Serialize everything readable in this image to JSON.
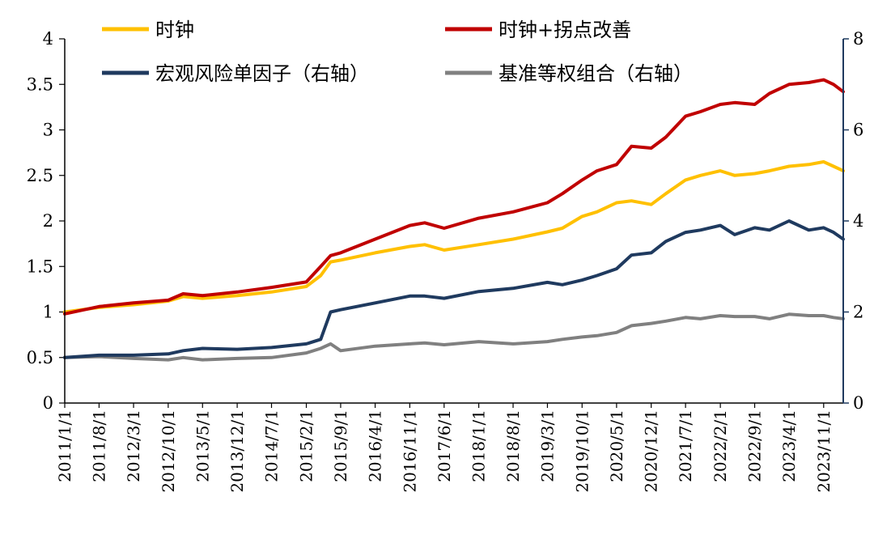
{
  "chart_data": {
    "type": "line",
    "title": "",
    "xlabel": "",
    "ylabel": "",
    "y_left": {
      "ticks": [
        "0",
        "0.5",
        "1",
        "1.5",
        "2",
        "2.5",
        "3",
        "3.5",
        "4"
      ],
      "range": [
        0,
        4
      ]
    },
    "y_right": {
      "ticks": [
        "0",
        "2",
        "4",
        "6",
        "8"
      ],
      "range": [
        0,
        8
      ],
      "color": "#1f3a5f"
    },
    "x_ticks": [
      "2011/1/1",
      "2011/8/1",
      "2012/3/1",
      "2012/10/1",
      "2013/5/1",
      "2013/12/1",
      "2014/7/1",
      "2015/2/1",
      "2015/9/1",
      "2016/4/1",
      "2016/11/1",
      "2017/6/1",
      "2018/1/1",
      "2018/8/1",
      "2019/3/1",
      "2019/10/1",
      "2020/5/1",
      "2020/12/1",
      "2021/7/1",
      "2022/2/1",
      "2022/9/1",
      "2023/4/1",
      "2023/11/1"
    ],
    "legend_position": "top",
    "series": [
      {
        "name": "时钟",
        "axis": "left",
        "color": "#ffc000",
        "points": [
          [
            "2011/1/1",
            1.0
          ],
          [
            "2011/8/1",
            1.05
          ],
          [
            "2012/3/1",
            1.08
          ],
          [
            "2012/10/1",
            1.12
          ],
          [
            "2013/1/1",
            1.17
          ],
          [
            "2013/5/1",
            1.15
          ],
          [
            "2013/12/1",
            1.18
          ],
          [
            "2014/7/1",
            1.22
          ],
          [
            "2015/2/1",
            1.28
          ],
          [
            "2015/5/1",
            1.4
          ],
          [
            "2015/7/1",
            1.55
          ],
          [
            "2015/9/1",
            1.57
          ],
          [
            "2016/4/1",
            1.65
          ],
          [
            "2016/11/1",
            1.72
          ],
          [
            "2017/2/1",
            1.74
          ],
          [
            "2017/6/1",
            1.68
          ],
          [
            "2018/1/1",
            1.74
          ],
          [
            "2018/8/1",
            1.8
          ],
          [
            "2019/3/1",
            1.88
          ],
          [
            "2019/6/1",
            1.92
          ],
          [
            "2019/10/1",
            2.05
          ],
          [
            "2020/1/1",
            2.1
          ],
          [
            "2020/5/1",
            2.2
          ],
          [
            "2020/8/1",
            2.22
          ],
          [
            "2020/12/1",
            2.18
          ],
          [
            "2021/3/1",
            2.3
          ],
          [
            "2021/7/1",
            2.45
          ],
          [
            "2021/10/1",
            2.5
          ],
          [
            "2022/2/1",
            2.55
          ],
          [
            "2022/5/1",
            2.5
          ],
          [
            "2022/9/1",
            2.52
          ],
          [
            "2022/12/1",
            2.55
          ],
          [
            "2023/4/1",
            2.6
          ],
          [
            "2023/8/1",
            2.62
          ],
          [
            "2023/11/1",
            2.65
          ],
          [
            "2024/1/1",
            2.6
          ],
          [
            "2024/3/1",
            2.55
          ]
        ]
      },
      {
        "name": "时钟+拐点改善",
        "axis": "left",
        "color": "#c00000",
        "points": [
          [
            "2011/1/1",
            0.98
          ],
          [
            "2011/8/1",
            1.06
          ],
          [
            "2012/3/1",
            1.1
          ],
          [
            "2012/10/1",
            1.13
          ],
          [
            "2013/1/1",
            1.2
          ],
          [
            "2013/5/1",
            1.18
          ],
          [
            "2013/12/1",
            1.22
          ],
          [
            "2014/7/1",
            1.27
          ],
          [
            "2015/2/1",
            1.33
          ],
          [
            "2015/5/1",
            1.5
          ],
          [
            "2015/7/1",
            1.62
          ],
          [
            "2015/9/1",
            1.65
          ],
          [
            "2016/4/1",
            1.8
          ],
          [
            "2016/11/1",
            1.95
          ],
          [
            "2017/2/1",
            1.98
          ],
          [
            "2017/6/1",
            1.92
          ],
          [
            "2018/1/1",
            2.03
          ],
          [
            "2018/8/1",
            2.1
          ],
          [
            "2019/3/1",
            2.2
          ],
          [
            "2019/6/1",
            2.3
          ],
          [
            "2019/10/1",
            2.45
          ],
          [
            "2020/1/1",
            2.55
          ],
          [
            "2020/5/1",
            2.62
          ],
          [
            "2020/8/1",
            2.82
          ],
          [
            "2020/12/1",
            2.8
          ],
          [
            "2021/3/1",
            2.92
          ],
          [
            "2021/7/1",
            3.15
          ],
          [
            "2021/10/1",
            3.2
          ],
          [
            "2022/2/1",
            3.28
          ],
          [
            "2022/5/1",
            3.3
          ],
          [
            "2022/9/1",
            3.28
          ],
          [
            "2022/12/1",
            3.4
          ],
          [
            "2023/4/1",
            3.5
          ],
          [
            "2023/8/1",
            3.52
          ],
          [
            "2023/11/1",
            3.55
          ],
          [
            "2024/1/1",
            3.5
          ],
          [
            "2024/3/1",
            3.42
          ]
        ]
      },
      {
        "name": "宏观风险单因子（右轴）",
        "axis": "right",
        "color": "#1f3a5f",
        "points": [
          [
            "2011/1/1",
            1.0
          ],
          [
            "2011/8/1",
            1.05
          ],
          [
            "2012/3/1",
            1.05
          ],
          [
            "2012/10/1",
            1.08
          ],
          [
            "2013/1/1",
            1.15
          ],
          [
            "2013/5/1",
            1.2
          ],
          [
            "2013/12/1",
            1.18
          ],
          [
            "2014/7/1",
            1.22
          ],
          [
            "2015/2/1",
            1.3
          ],
          [
            "2015/5/1",
            1.4
          ],
          [
            "2015/7/1",
            2.0
          ],
          [
            "2015/9/1",
            2.05
          ],
          [
            "2016/4/1",
            2.2
          ],
          [
            "2016/11/1",
            2.35
          ],
          [
            "2017/2/1",
            2.35
          ],
          [
            "2017/6/1",
            2.3
          ],
          [
            "2018/1/1",
            2.45
          ],
          [
            "2018/8/1",
            2.52
          ],
          [
            "2019/3/1",
            2.65
          ],
          [
            "2019/6/1",
            2.6
          ],
          [
            "2019/10/1",
            2.7
          ],
          [
            "2020/1/1",
            2.8
          ],
          [
            "2020/5/1",
            2.95
          ],
          [
            "2020/8/1",
            3.25
          ],
          [
            "2020/12/1",
            3.3
          ],
          [
            "2021/3/1",
            3.55
          ],
          [
            "2021/7/1",
            3.75
          ],
          [
            "2021/10/1",
            3.8
          ],
          [
            "2022/2/1",
            3.9
          ],
          [
            "2022/5/1",
            3.7
          ],
          [
            "2022/9/1",
            3.85
          ],
          [
            "2022/12/1",
            3.8
          ],
          [
            "2023/4/1",
            4.0
          ],
          [
            "2023/8/1",
            3.8
          ],
          [
            "2023/11/1",
            3.85
          ],
          [
            "2024/1/1",
            3.75
          ],
          [
            "2024/3/1",
            3.6
          ]
        ]
      },
      {
        "name": "基准等权组合（右轴）",
        "axis": "right",
        "color": "#808080",
        "points": [
          [
            "2011/1/1",
            1.0
          ],
          [
            "2011/8/1",
            1.02
          ],
          [
            "2012/3/1",
            0.98
          ],
          [
            "2012/10/1",
            0.95
          ],
          [
            "2013/1/1",
            1.0
          ],
          [
            "2013/5/1",
            0.95
          ],
          [
            "2013/12/1",
            0.98
          ],
          [
            "2014/7/1",
            1.0
          ],
          [
            "2015/2/1",
            1.1
          ],
          [
            "2015/5/1",
            1.2
          ],
          [
            "2015/7/1",
            1.3
          ],
          [
            "2015/9/1",
            1.15
          ],
          [
            "2016/4/1",
            1.25
          ],
          [
            "2016/11/1",
            1.3
          ],
          [
            "2017/2/1",
            1.32
          ],
          [
            "2017/6/1",
            1.28
          ],
          [
            "2018/1/1",
            1.35
          ],
          [
            "2018/8/1",
            1.3
          ],
          [
            "2019/3/1",
            1.35
          ],
          [
            "2019/6/1",
            1.4
          ],
          [
            "2019/10/1",
            1.45
          ],
          [
            "2020/1/1",
            1.48
          ],
          [
            "2020/5/1",
            1.55
          ],
          [
            "2020/8/1",
            1.7
          ],
          [
            "2020/12/1",
            1.75
          ],
          [
            "2021/3/1",
            1.8
          ],
          [
            "2021/7/1",
            1.88
          ],
          [
            "2021/10/1",
            1.85
          ],
          [
            "2022/2/1",
            1.92
          ],
          [
            "2022/5/1",
            1.9
          ],
          [
            "2022/9/1",
            1.9
          ],
          [
            "2022/12/1",
            1.85
          ],
          [
            "2023/4/1",
            1.95
          ],
          [
            "2023/8/1",
            1.92
          ],
          [
            "2023/11/1",
            1.92
          ],
          [
            "2024/1/1",
            1.88
          ],
          [
            "2024/3/1",
            1.85
          ]
        ]
      }
    ]
  }
}
